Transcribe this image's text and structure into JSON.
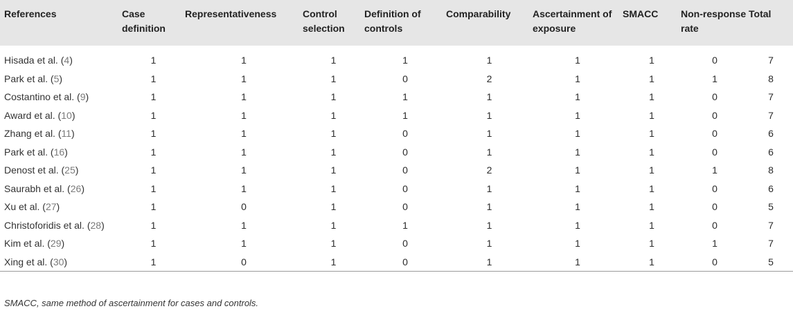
{
  "headers": [
    "References",
    "Case definition",
    "Representativeness",
    "Control selection",
    "Definition of controls",
    "Comparability",
    "Ascertainment of exposure",
    "SMACC",
    "Non-response rate",
    "Total"
  ],
  "rows": [
    {
      "author": "Hisada et al.",
      "ref": "4",
      "values": [
        "1",
        "1",
        "1",
        "1",
        "1",
        "1",
        "1",
        "0",
        "7"
      ]
    },
    {
      "author": "Park et al.",
      "ref": "5",
      "values": [
        "1",
        "1",
        "1",
        "0",
        "2",
        "1",
        "1",
        "1",
        "8"
      ]
    },
    {
      "author": "Costantino et al.",
      "ref": "9",
      "values": [
        "1",
        "1",
        "1",
        "1",
        "1",
        "1",
        "1",
        "0",
        "7"
      ]
    },
    {
      "author": "Award et al.",
      "ref": "10",
      "values": [
        "1",
        "1",
        "1",
        "1",
        "1",
        "1",
        "1",
        "0",
        "7"
      ]
    },
    {
      "author": "Zhang et al.",
      "ref": "11",
      "values": [
        "1",
        "1",
        "1",
        "0",
        "1",
        "1",
        "1",
        "0",
        "6"
      ]
    },
    {
      "author": "Park et al.",
      "ref": "16",
      "values": [
        "1",
        "1",
        "1",
        "0",
        "1",
        "1",
        "1",
        "0",
        "6"
      ]
    },
    {
      "author": "Denost et al.",
      "ref": "25",
      "values": [
        "1",
        "1",
        "1",
        "0",
        "2",
        "1",
        "1",
        "1",
        "8"
      ]
    },
    {
      "author": "Saurabh et al.",
      "ref": "26",
      "values": [
        "1",
        "1",
        "1",
        "0",
        "1",
        "1",
        "1",
        "0",
        "6"
      ]
    },
    {
      "author": "Xu et al.",
      "ref": "27",
      "values": [
        "1",
        "0",
        "1",
        "0",
        "1",
        "1",
        "1",
        "0",
        "5"
      ]
    },
    {
      "author": "Christoforidis et al.",
      "ref": "28",
      "values": [
        "1",
        "1",
        "1",
        "1",
        "1",
        "1",
        "1",
        "0",
        "7"
      ]
    },
    {
      "author": "Kim et al.",
      "ref": "29",
      "values": [
        "1",
        "1",
        "1",
        "0",
        "1",
        "1",
        "1",
        "1",
        "7"
      ]
    },
    {
      "author": "Xing et al.",
      "ref": "30",
      "values": [
        "1",
        "0",
        "1",
        "0",
        "1",
        "1",
        "1",
        "0",
        "5"
      ]
    }
  ],
  "footnote": "SMACC, same method of ascertainment for cases and controls."
}
